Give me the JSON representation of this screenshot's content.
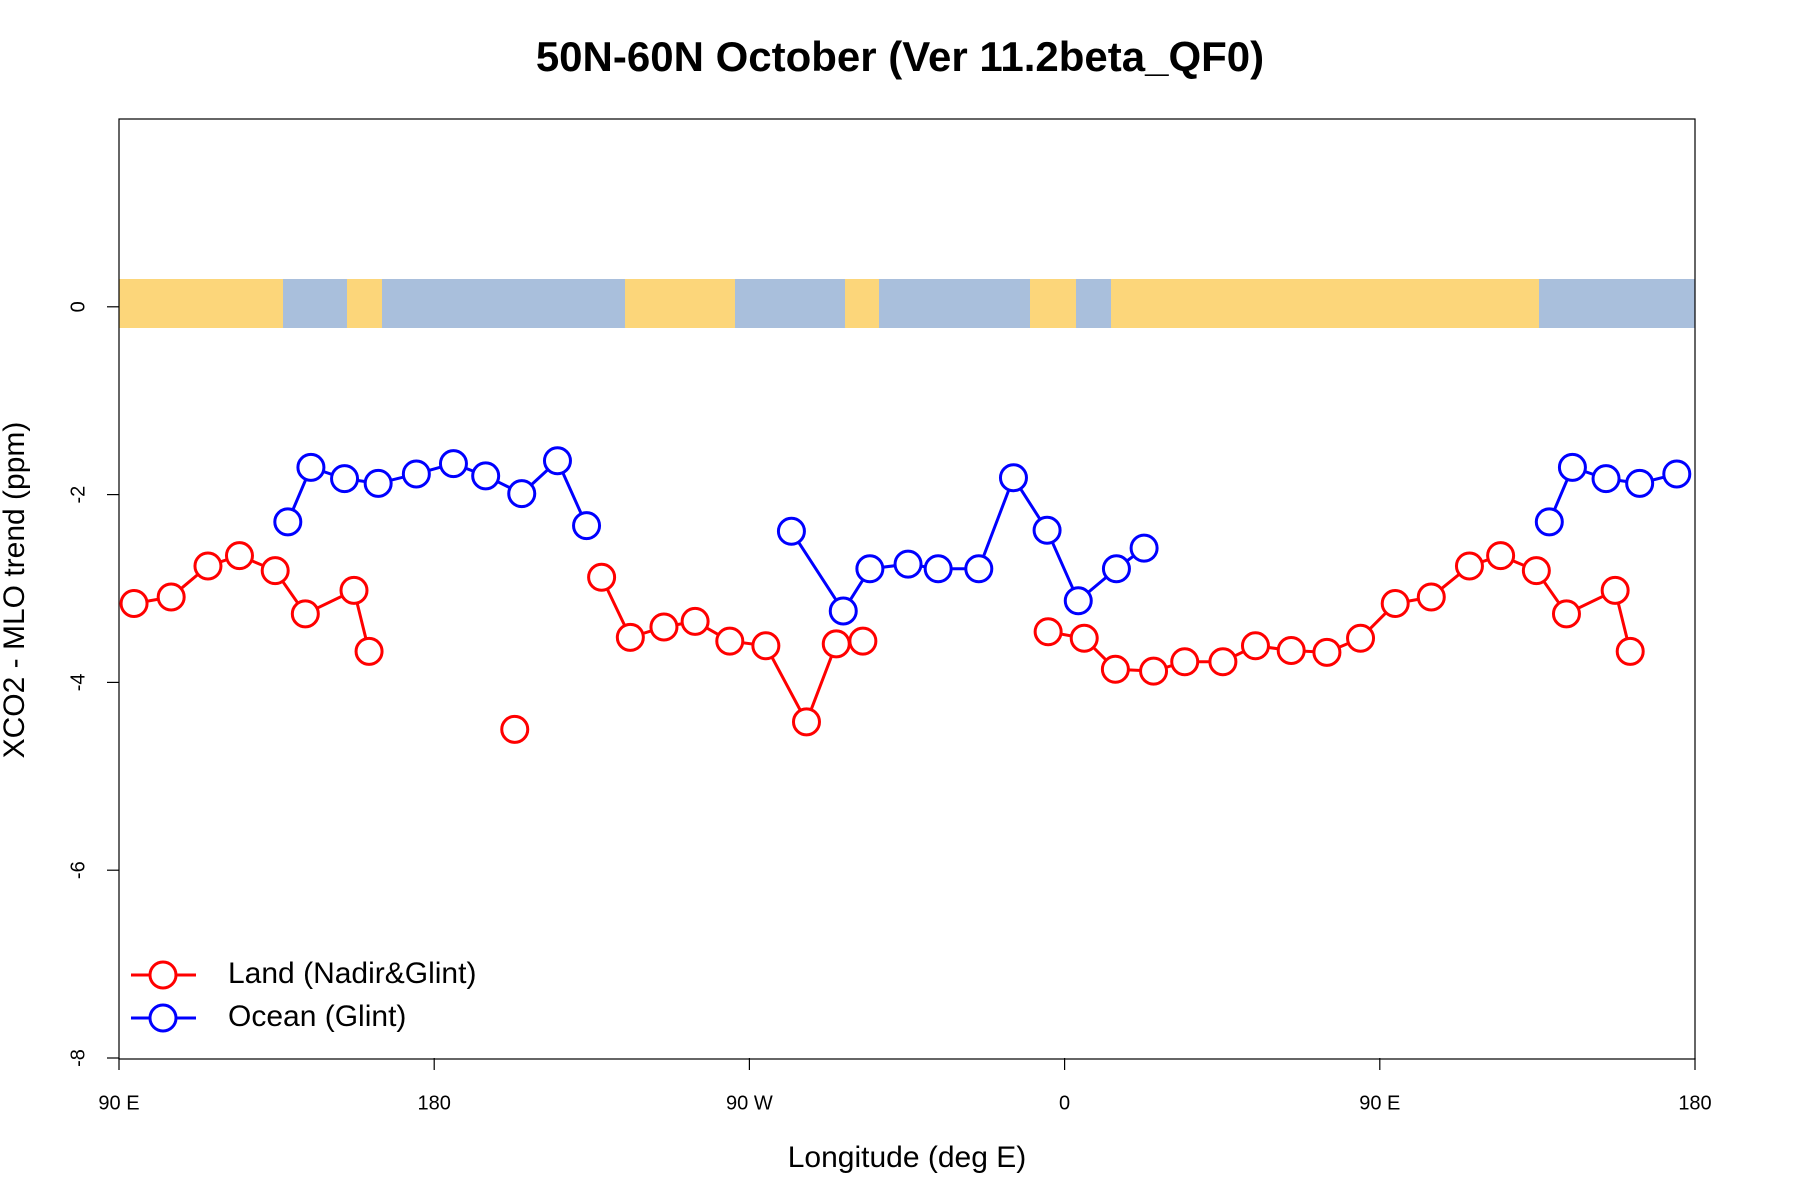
{
  "chart_data": {
    "type": "line",
    "title": "50N-60N October (Ver 11.2beta_QF0)",
    "xlabel": "Longitude (deg E)",
    "ylabel": "XCO2 - MLO trend (ppm)",
    "xlim": [
      90,
      540
    ],
    "ylim": [
      -8,
      2
    ],
    "xticks": [
      {
        "value": 90,
        "label": "90 E"
      },
      180,
      {
        "value": 270,
        "label": "90 W"
      },
      {
        "value": 360,
        "label": "0"
      },
      {
        "value": 450,
        "label": "90 E"
      },
      {
        "value": 540,
        "label": "180"
      }
    ],
    "yticks": [
      0,
      -2,
      -4,
      -6,
      -8
    ],
    "legend": "lower left",
    "series": [
      {
        "name": "Land (Nadir&Glint)",
        "color": "#ff0000",
        "x": [
          94.3,
          104.9,
          115.4,
          124.4,
          134.6,
          143.2,
          157.1,
          161.4,
          null,
          203.0,
          null,
          227.8,
          236.0,
          245.6,
          254.5,
          264.4,
          274.7,
          286.3,
          294.8,
          302.4,
          null,
          355.3,
          365.6,
          374.5,
          385.4,
          394.3,
          405.2,
          414.5,
          424.7,
          434.9,
          444.5,
          454.4,
          464.7,
          475.6,
          484.5,
          494.7,
          503.3,
          517.2,
          521.5
        ],
        "values": [
          -3.16,
          -3.09,
          -2.76,
          -2.65,
          -2.81,
          -3.27,
          -3.02,
          -3.67,
          null,
          -4.5,
          null,
          -2.88,
          -3.52,
          -3.41,
          -3.35,
          -3.56,
          -3.61,
          -4.42,
          -3.59,
          -3.56,
          null,
          -3.46,
          -3.53,
          -3.86,
          -3.88,
          -3.78,
          -3.78,
          -3.61,
          -3.66,
          -3.68,
          -3.53,
          -3.16,
          -3.09,
          -2.76,
          -2.65,
          -2.81,
          -3.27,
          -3.02,
          -3.67
        ]
      },
      {
        "name": "Ocean (Glint)",
        "color": "#0000ff",
        "x": [
          138.2,
          144.8,
          154.4,
          164.0,
          174.9,
          185.5,
          194.7,
          205.0,
          215.2,
          223.5,
          null,
          282.0,
          296.8,
          304.4,
          315.3,
          323.9,
          335.5,
          345.4,
          355.0,
          363.9,
          374.8,
          382.7,
          null,
          498.4,
          505.0,
          514.6,
          524.2,
          534.8
        ],
        "values": [
          -2.29,
          -1.71,
          -1.83,
          -1.88,
          -1.78,
          -1.67,
          -1.8,
          -1.99,
          -1.64,
          -2.33,
          null,
          -2.39,
          -3.24,
          -2.79,
          -2.74,
          -2.79,
          -2.79,
          -1.82,
          -2.38,
          -3.13,
          -2.79,
          -2.57,
          null,
          -2.29,
          -1.71,
          -1.83,
          -1.88,
          -1.78
        ]
      }
    ]
  }
}
